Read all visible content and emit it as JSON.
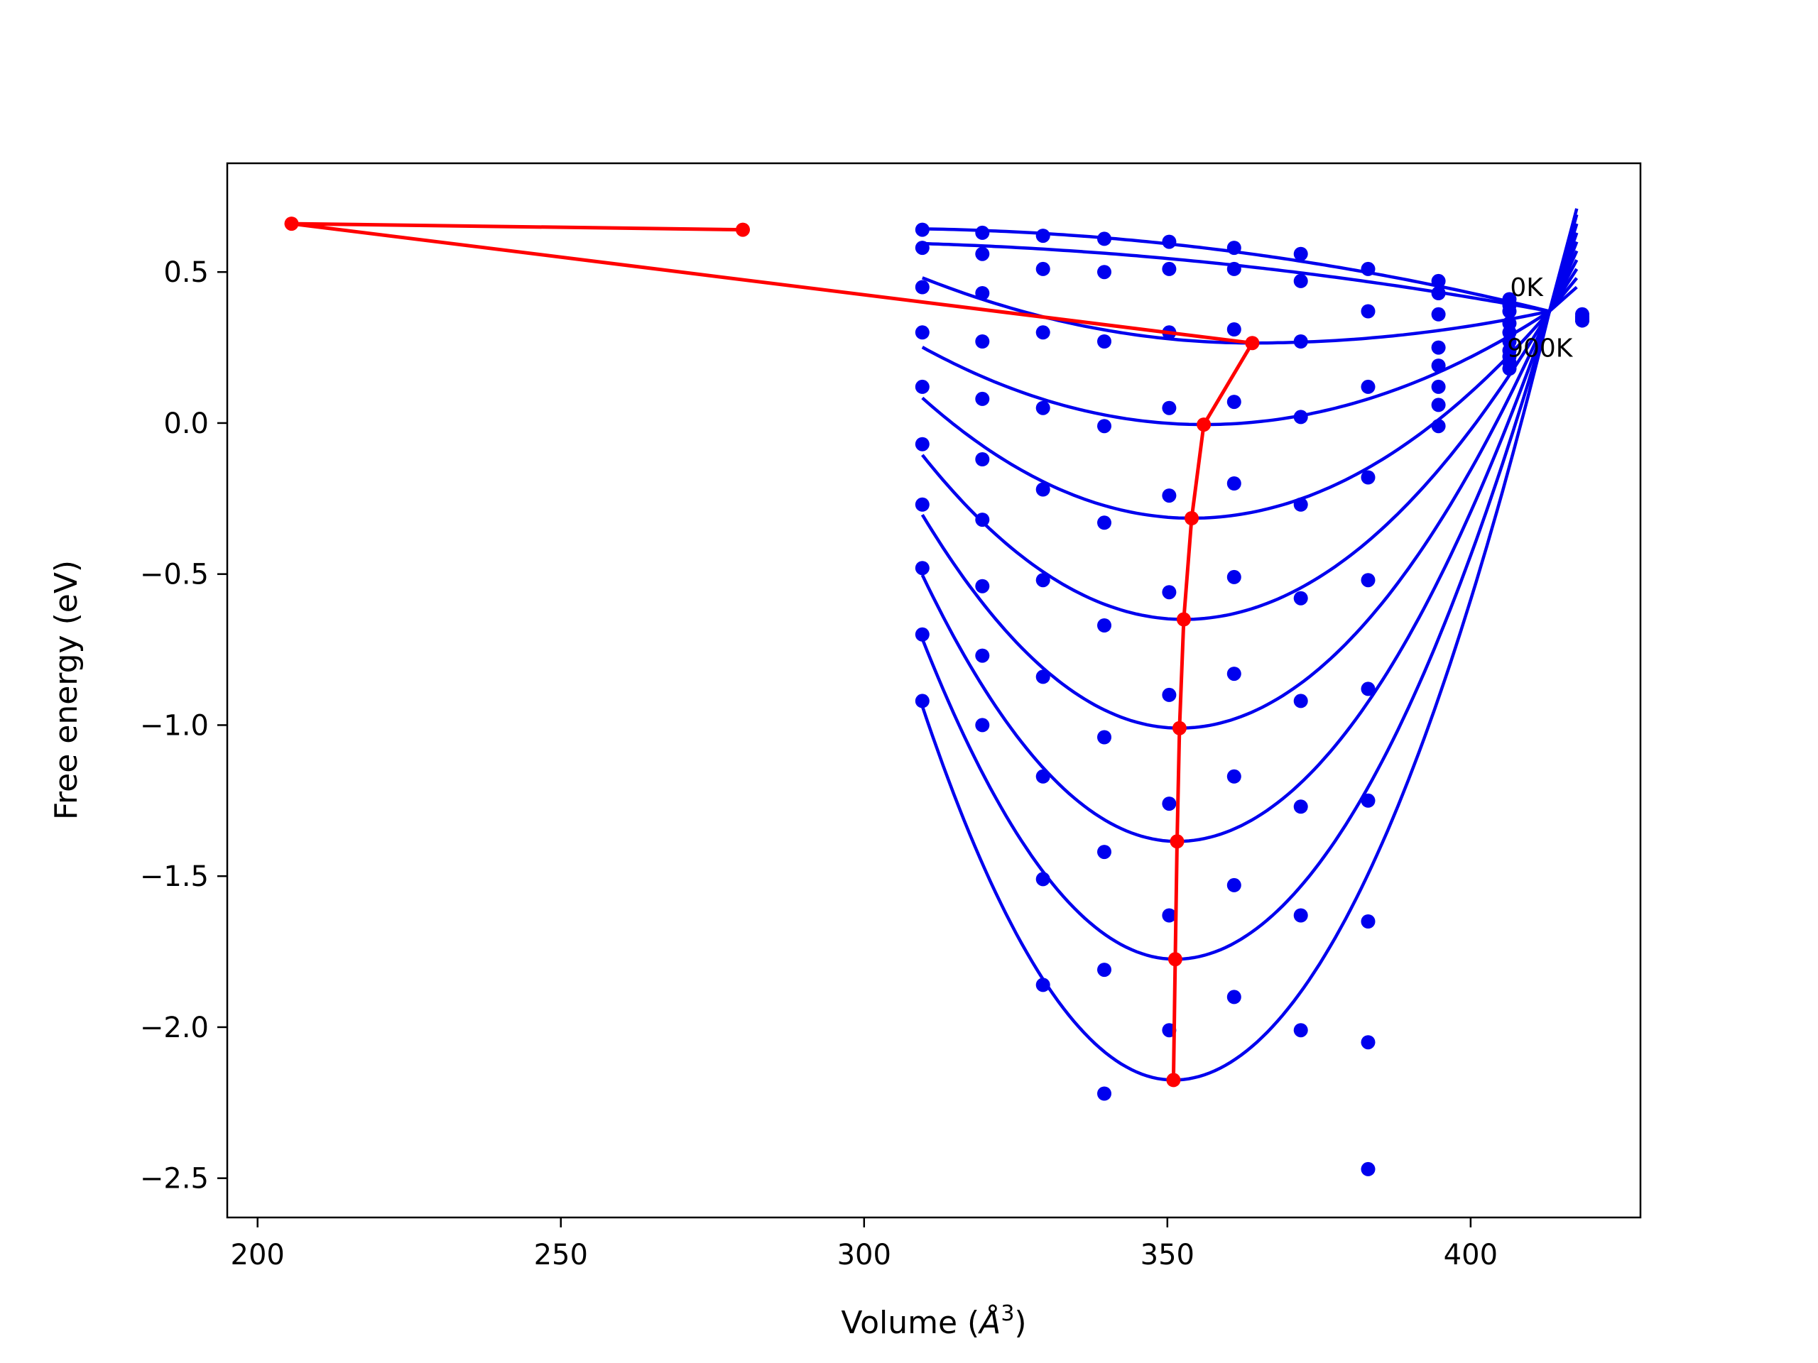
{
  "chart_data": {
    "type": "line",
    "title": "",
    "xlabel_main": "Volume (",
    "xlabel_unit": "Å",
    "xlabel_sup": "3",
    "xlabel_close": ")",
    "ylabel": "Free energy (eV)",
    "xlim": [
      195,
      428
    ],
    "ylim": [
      -2.63,
      0.86
    ],
    "xticks": [
      200,
      250,
      300,
      350,
      400
    ],
    "yticks": [
      0.5,
      0.0,
      -0.5,
      -1.0,
      -1.5,
      -2.0,
      -2.5
    ],
    "xtick_labels": [
      "200",
      "250",
      "300",
      "350",
      "400"
    ],
    "ytick_labels": [
      "0.5",
      "0.0",
      "−0.5",
      "−1.0",
      "−1.5",
      "−2.0",
      "−2.5"
    ],
    "grid": false,
    "colors": {
      "fit": "#0000ee",
      "points": "#0000ee",
      "equilibrium": "#ff0000"
    },
    "scatter_x": [
      309.6,
      319.5,
      329.5,
      339.6,
      350.3,
      361.0,
      372.0,
      383.1,
      394.7,
      406.4,
      418.4
    ],
    "point_series": [
      [
        0.64,
        0.63,
        0.62,
        0.61,
        0.6,
        0.58,
        0.56,
        0.51,
        0.47,
        0.41,
        0.36
      ],
      [
        0.58,
        0.56,
        0.51,
        0.5,
        0.51,
        0.51,
        0.47,
        null,
        0.43,
        0.39,
        0.35
      ],
      [
        0.45,
        0.43,
        null,
        null,
        null,
        null,
        null,
        0.37,
        0.36,
        0.37,
        0.35
      ],
      [
        0.3,
        0.27,
        0.3,
        0.27,
        0.3,
        0.31,
        0.27,
        null,
        0.25,
        0.33,
        0.35
      ],
      [
        0.12,
        0.08,
        0.05,
        -0.01,
        0.05,
        0.07,
        0.02,
        0.12,
        0.19,
        0.3,
        0.34
      ],
      [
        -0.07,
        -0.12,
        -0.22,
        -0.33,
        -0.24,
        -0.2,
        -0.27,
        -0.18,
        0.12,
        0.27,
        0.34
      ],
      [
        -0.27,
        -0.32,
        -0.52,
        -0.67,
        -0.56,
        -0.51,
        -0.58,
        -0.52,
        0.06,
        0.24,
        0.34
      ],
      [
        -0.48,
        -0.54,
        -0.84,
        -1.04,
        -0.9,
        -0.83,
        -0.92,
        -0.88,
        -0.01,
        0.22,
        0.34
      ],
      [
        -0.7,
        -0.77,
        -1.17,
        -1.42,
        -1.26,
        -1.17,
        -1.27,
        -1.25,
        null,
        0.2,
        0.34
      ],
      [
        -0.92,
        -1.0,
        -1.51,
        -1.81,
        -1.63,
        -1.53,
        -1.63,
        -1.65,
        null,
        0.18,
        0.34
      ],
      [
        null,
        null,
        -1.86,
        -2.22,
        -2.01,
        -1.9,
        -2.01,
        -2.05,
        null,
        null,
        null
      ],
      [
        null,
        null,
        null,
        null,
        null,
        null,
        null,
        -2.47,
        null,
        null,
        null
      ]
    ],
    "fit_curves": [
      {
        "vmin": 309.6,
        "vmax": 417.5,
        "v0": 300.0,
        "f0": 0.645,
        "curv": 2.25e-05,
        "pivot": 413.0,
        "pivot_f": 0.37,
        "tail_f": 0.71
      },
      {
        "vmin": 309.6,
        "vmax": 417.5,
        "v0": 290.0,
        "f0": 0.6,
        "curv": 1.5e-05,
        "pivot": 413.0,
        "pivot_f": 0.37,
        "tail_f": 0.69
      }
    ],
    "parabolas": [
      {
        "v0": 364.0,
        "f0": 0.265,
        "a": 7.3e-05,
        "vmin": 309.6,
        "vmax": 417.5,
        "tail_f": 0.66
      },
      {
        "v0": 356.0,
        "f0": -0.005,
        "a": 0.000119,
        "vmin": 309.6,
        "vmax": 417.5,
        "tail_f": 0.63
      },
      {
        "v0": 354.0,
        "f0": -0.315,
        "a": 0.000202,
        "vmin": 309.6,
        "vmax": 417.5,
        "tail_f": 0.6
      },
      {
        "v0": 352.7,
        "f0": -0.65,
        "a": 0.000293,
        "vmin": 309.6,
        "vmax": 417.5,
        "tail_f": 0.57
      },
      {
        "v0": 352.0,
        "f0": -1.01,
        "a": 0.000393,
        "vmin": 309.6,
        "vmax": 417.5,
        "tail_f": 0.54
      },
      {
        "v0": 351.6,
        "f0": -1.385,
        "a": 0.0005,
        "vmin": 309.6,
        "vmax": 417.5,
        "tail_f": 0.51
      },
      {
        "v0": 351.3,
        "f0": -1.775,
        "a": 0.00061,
        "vmin": 309.6,
        "vmax": 417.5,
        "tail_f": 0.48
      },
      {
        "v0": 351.0,
        "f0": -2.175,
        "a": 0.000722,
        "vmin": 309.6,
        "vmax": 417.5,
        "tail_f": 0.45
      }
    ],
    "equilibrium_line": {
      "x": [
        280.0,
        205.6,
        364.0,
        356.0,
        354.0,
        352.7,
        352.0,
        351.6,
        351.3,
        351.0
      ],
      "y": [
        0.64,
        0.66,
        0.265,
        -0.005,
        -0.315,
        -0.65,
        -1.01,
        -1.385,
        -1.775,
        -2.175
      ]
    },
    "annotations": [
      {
        "text": "0K",
        "x": 406.5,
        "y": 0.42
      },
      {
        "text": "900K",
        "x": 406.0,
        "y": 0.22
      }
    ]
  }
}
